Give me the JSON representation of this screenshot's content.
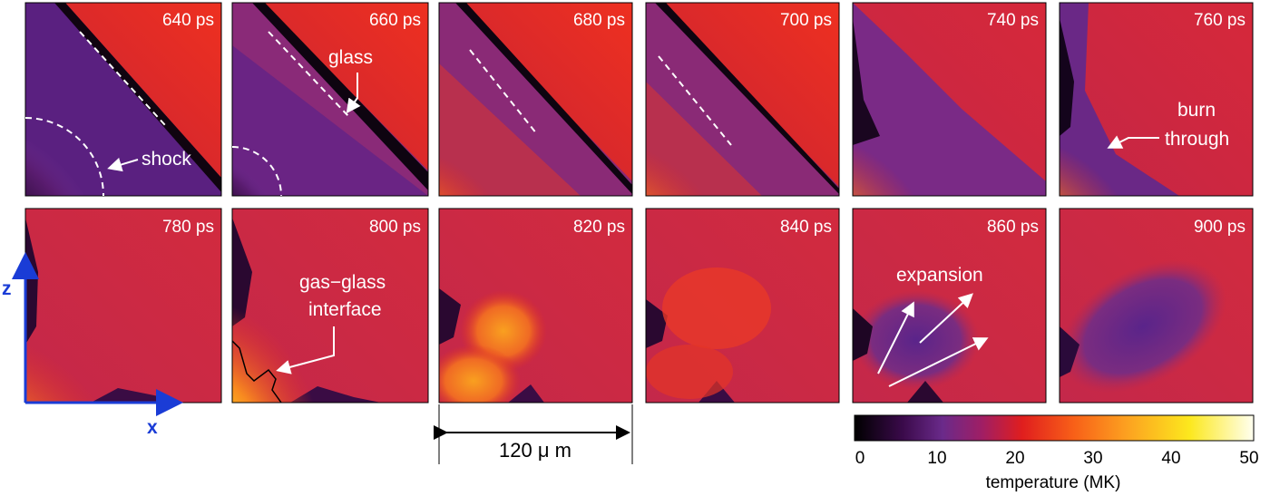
{
  "figure": {
    "panels": [
      {
        "time": "640 ps"
      },
      {
        "time": "660 ps"
      },
      {
        "time": "680 ps"
      },
      {
        "time": "700 ps"
      },
      {
        "time": "740 ps"
      },
      {
        "time": "760 ps"
      },
      {
        "time": "780 ps"
      },
      {
        "time": "800 ps"
      },
      {
        "time": "820 ps"
      },
      {
        "time": "840 ps"
      },
      {
        "time": "860 ps"
      },
      {
        "time": "900 ps"
      }
    ],
    "annotations": {
      "shock": "shock",
      "glass": "glass",
      "burn_line1": "burn",
      "burn_line2": "through",
      "gas_glass_line1": "gas−glass",
      "gas_glass_line2": "interface",
      "expansion": "expansion"
    },
    "axes": {
      "z": "z",
      "x": "x"
    },
    "scale_bar": "120 μ m",
    "colorbar": {
      "label": "temperature (MK)",
      "ticks": [
        "0",
        "10",
        "20",
        "30",
        "40",
        "50"
      ],
      "colors": [
        "#000000",
        "#3a0a4a",
        "#6a2a8a",
        "#a01e64",
        "#e01e1e",
        "#f86018",
        "#fca020",
        "#fce81e",
        "#fffff0"
      ]
    },
    "colors": {
      "hot_red": "#dc2828",
      "purple": "#6a2a8a",
      "yellow": "#fce81e",
      "axis_blue": "#1a3cd6"
    }
  }
}
